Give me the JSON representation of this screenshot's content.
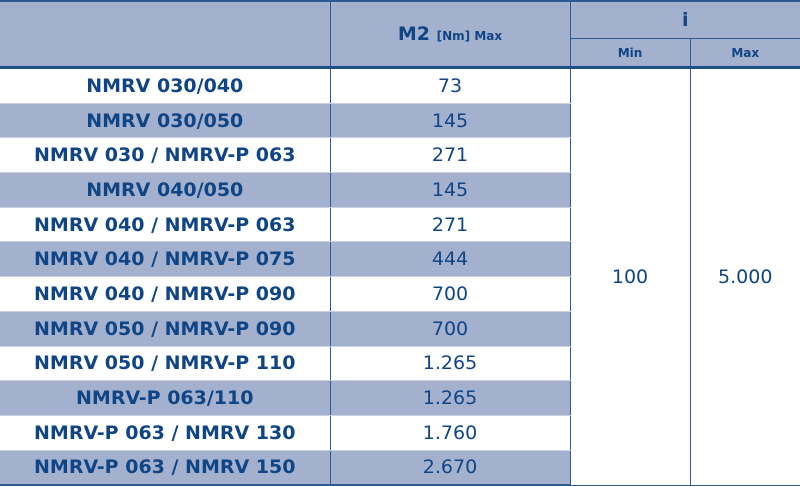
{
  "header": {
    "m2_main": "M2",
    "m2_unit": "[Nm] Max",
    "i_label": "i",
    "i_min": "Min",
    "i_max": "Max"
  },
  "rows": [
    {
      "model": "NMRV 030/040",
      "m2": "73"
    },
    {
      "model": "NMRV 030/050",
      "m2": "145"
    },
    {
      "model": "NMRV 030 / NMRV-P 063",
      "m2": "271"
    },
    {
      "model": "NMRV 040/050",
      "m2": "145"
    },
    {
      "model": "NMRV 040 / NMRV-P 063",
      "m2": "271"
    },
    {
      "model": "NMRV 040 / NMRV-P 075",
      "m2": "444"
    },
    {
      "model": "NMRV 040 / NMRV-P 090",
      "m2": "700"
    },
    {
      "model": "NMRV 050 / NMRV-P 090",
      "m2": "700"
    },
    {
      "model": "NMRV 050 / NMRV-P 110",
      "m2": "1.265"
    },
    {
      "model": "NMRV-P 063/110",
      "m2": "1.265"
    },
    {
      "model": "NMRV-P 063 / NMRV 130",
      "m2": "1.760"
    },
    {
      "model": "NMRV-P 063 / NMRV 150",
      "m2": "2.670"
    }
  ],
  "i_min_value": "100",
  "i_max_value": "5.000",
  "colors": {
    "header_bg": "#a3b1cf",
    "text": "#0f4585",
    "border": "#2c5a92"
  }
}
